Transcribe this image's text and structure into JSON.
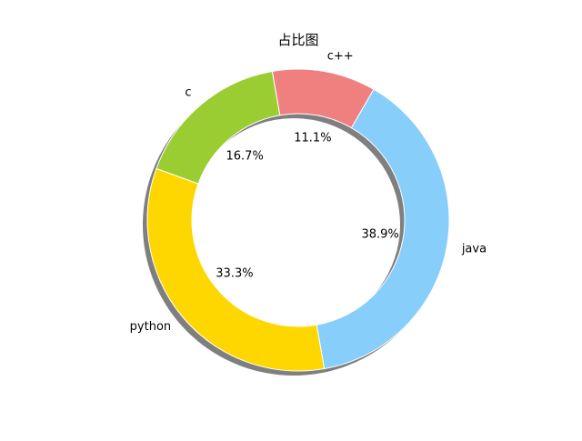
{
  "chart_data": {
    "type": "pie",
    "donut": true,
    "title": "占比图",
    "start_angle_deg": 60,
    "shadow": true,
    "slices": [
      {
        "label": "c++",
        "value": 11.1,
        "pct_text": "11.1%",
        "color": "#F08080"
      },
      {
        "label": "c",
        "value": 16.7,
        "pct_text": "16.7%",
        "color": "#9ACD32"
      },
      {
        "label": "python",
        "value": 33.3,
        "pct_text": "33.3%",
        "color": "#FFD700"
      },
      {
        "label": "java",
        "value": 38.9,
        "pct_text": "38.9%",
        "color": "#87CEFA"
      }
    ]
  }
}
